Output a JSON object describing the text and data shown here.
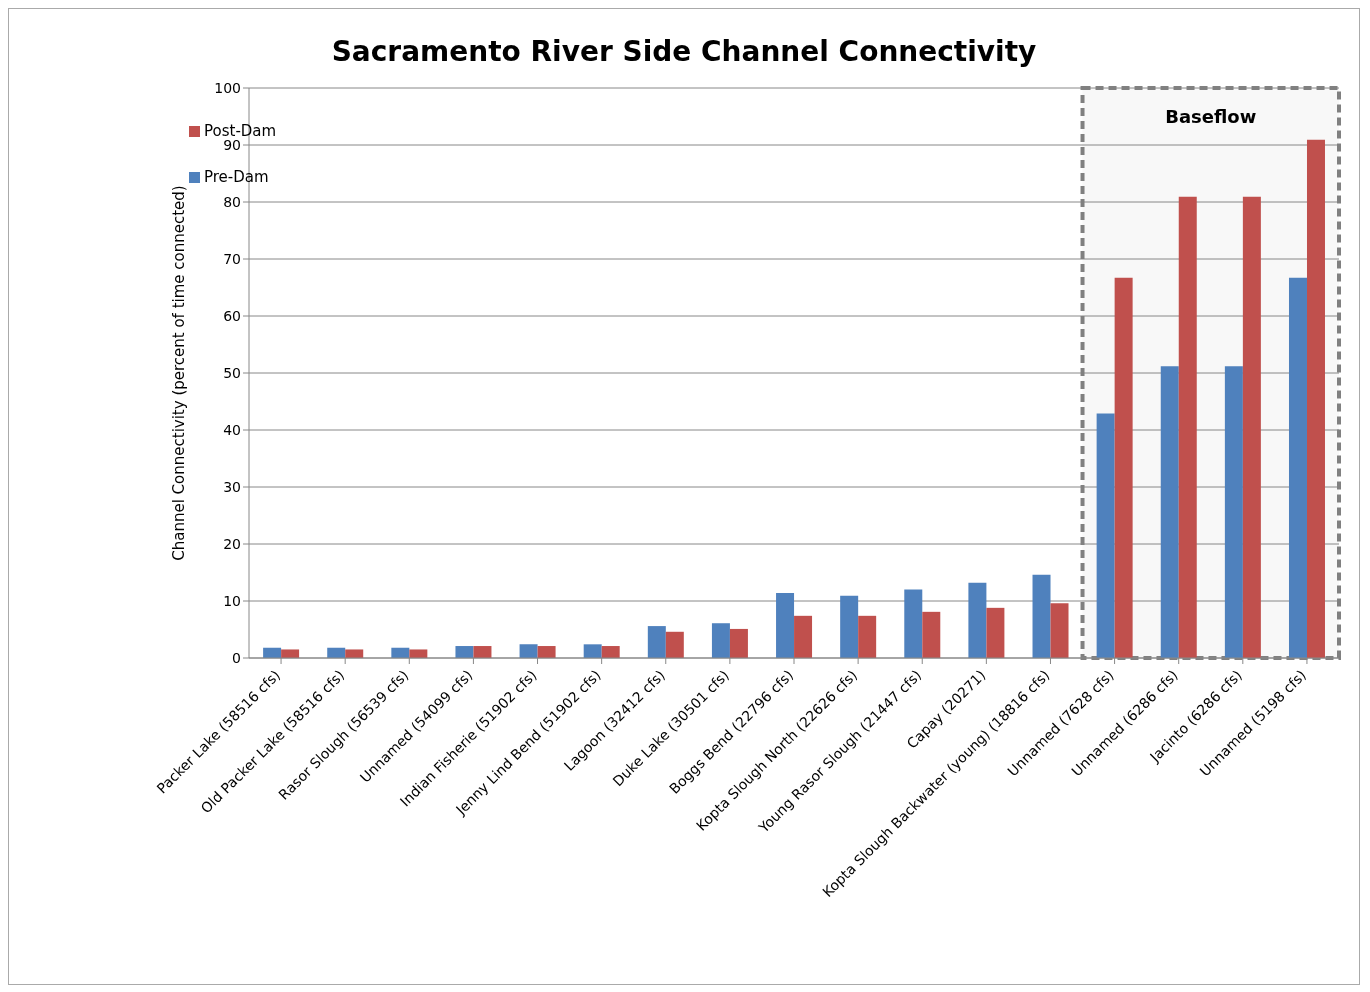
{
  "chart_data": {
    "type": "bar",
    "title": "Sacramento River Side Channel Connectivity",
    "ylabel": "Channel Connectivity (percent of time connected)",
    "categories": [
      "Packer Lake (58516 cfs)",
      "Old Packer Lake (58516 cfs)",
      "Rasor Slough (56539 cfs)",
      "Unnamed (54099 cfs)",
      "Indian Fisherie (51902 cfs)",
      "Jenny Lind Bend (51902 cfs)",
      "Lagoon (32412 cfs)",
      "Duke Lake (30501 cfs)",
      "Boggs Bend (22796 cfs)",
      "Kopta Slough North (22626 cfs)",
      "Young Rasor Slough (21447 cfs)",
      "Capay (20271)",
      "Kopta Slough Backwater (young) (18816 cfs)",
      "Unnamed (7628 cfs)",
      "Unnamed (6286 cfs)",
      "Jacinto (6286 cfs)",
      "Unnamed (5198 cfs)"
    ],
    "series": [
      {
        "name": "Pre-Dam",
        "color": "#4f81bd",
        "values": [
          1.8,
          1.8,
          1.8,
          2.1,
          2.4,
          2.4,
          5.6,
          6.1,
          11.4,
          10.9,
          12.0,
          13.2,
          14.6,
          42.9,
          51.2,
          51.2,
          66.7
        ]
      },
      {
        "name": "Post-Dam",
        "color": "#c0504d",
        "values": [
          1.5,
          1.5,
          1.5,
          2.1,
          2.1,
          2.1,
          4.6,
          5.1,
          7.4,
          7.4,
          8.1,
          8.8,
          9.6,
          66.7,
          80.9,
          80.9,
          90.9
        ]
      }
    ],
    "ylim": [
      0,
      100
    ],
    "yticks": [
      0,
      10,
      20,
      30,
      40,
      50,
      60,
      70,
      80,
      90,
      100
    ],
    "bands": [
      {
        "axis": "x",
        "from": "Unnamed (7628 cfs)",
        "to": "Unnamed (5198 cfs)",
        "label": "Baseflow",
        "color": "#808080"
      }
    ],
    "grid": "y",
    "legend": "top left"
  }
}
